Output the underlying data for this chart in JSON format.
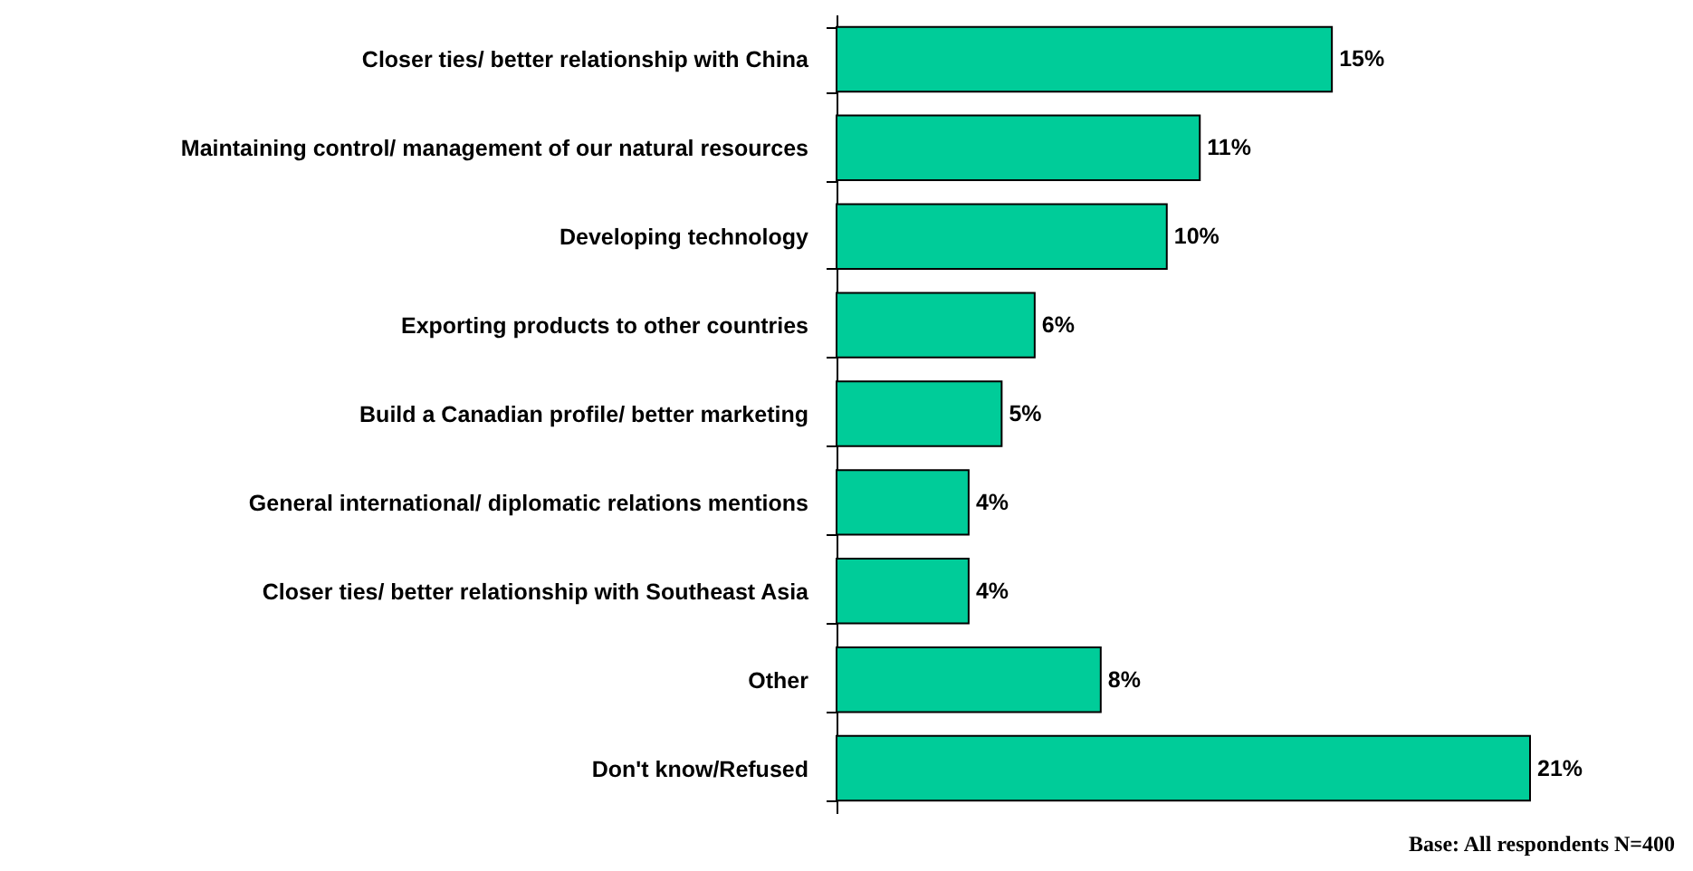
{
  "chart_data": {
    "type": "bar",
    "orientation": "horizontal",
    "categories": [
      "Closer ties/ better relationship  with China",
      "Maintaining control/ management of our natural resources",
      "Developing technology",
      "Exporting products to other countries",
      "Build a Canadian profile/ better marketing",
      "General international/ diplomatic relations mentions",
      "Closer ties/ better relationship with Southeast Asia",
      "Other",
      "Don't know/Refused"
    ],
    "values": [
      15,
      11,
      10,
      6,
      5,
      4,
      4,
      8,
      21
    ],
    "value_labels": [
      "15%",
      "11%",
      "10%",
      "6%",
      "5%",
      "4%",
      "4%",
      "8%",
      "21%"
    ],
    "color": "#00cc99",
    "annotations": [
      "Base: All respondents N=400"
    ]
  }
}
